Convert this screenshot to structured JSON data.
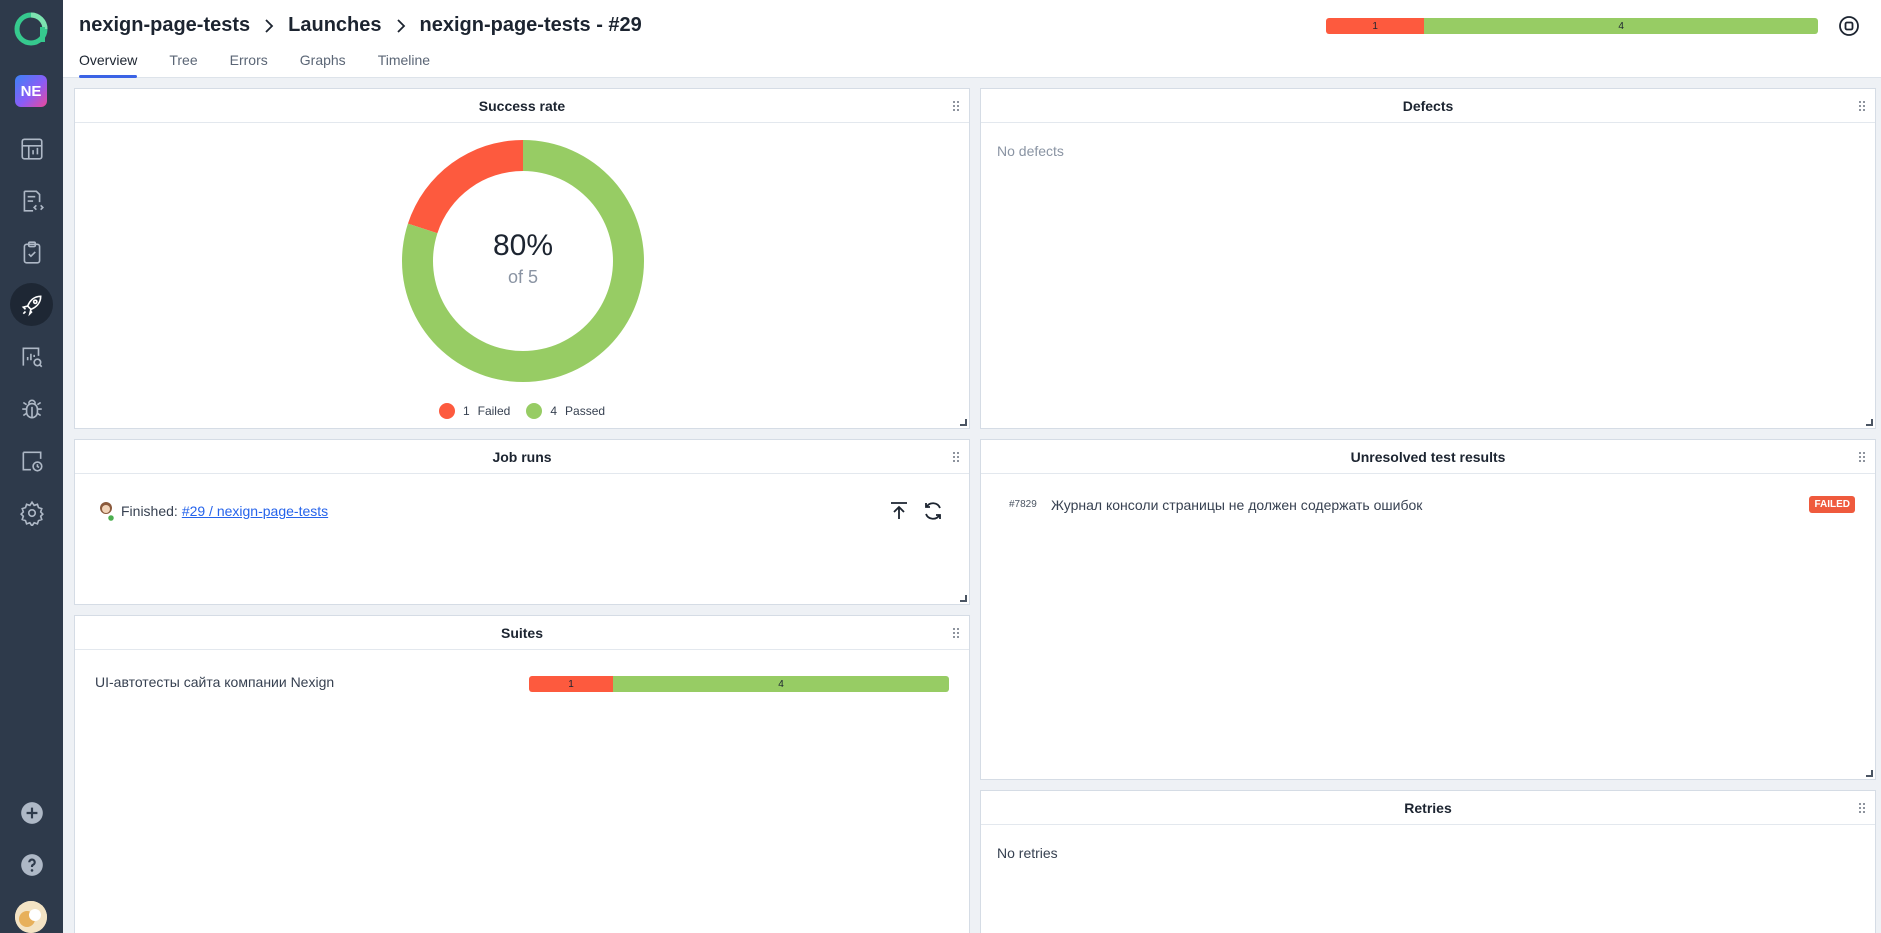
{
  "colors": {
    "failed": "#fd5a3e",
    "passed": "#97cc64",
    "sidebar": "#2e3a4b",
    "accent": "#3b63e5"
  },
  "sidebar": {
    "workspace_initials": "NE",
    "items": [
      {
        "icon": "dashboard-icon"
      },
      {
        "icon": "test-cases-icon"
      },
      {
        "icon": "test-plans-icon"
      },
      {
        "icon": "launches-icon",
        "active": true
      },
      {
        "icon": "analytics-icon"
      },
      {
        "icon": "defects-icon"
      },
      {
        "icon": "jobs-icon"
      },
      {
        "icon": "settings-icon"
      }
    ],
    "bottom": [
      {
        "icon": "plus-icon"
      },
      {
        "icon": "help-icon"
      }
    ]
  },
  "header": {
    "breadcrumb": [
      "nexign-page-tests",
      "Launches",
      "nexign-page-tests - #29"
    ],
    "tabs": [
      "Overview",
      "Tree",
      "Errors",
      "Graphs",
      "Timeline"
    ],
    "active_tab": "Overview",
    "status_bar": {
      "failed": 1,
      "passed": 4,
      "failed_label": "1",
      "passed_label": "4"
    }
  },
  "widgets": {
    "success_rate": {
      "title": "Success rate",
      "percent": "80%",
      "of_label": "of 5",
      "legend": [
        {
          "count": "1",
          "label": "Failed"
        },
        {
          "count": "4",
          "label": "Passed"
        }
      ]
    },
    "defects": {
      "title": "Defects",
      "empty": "No defects"
    },
    "job_runs": {
      "title": "Job runs",
      "status": "Finished:",
      "link": "#29 / nexign-page-tests"
    },
    "unresolved": {
      "title": "Unresolved test results",
      "rows": [
        {
          "id": "#7829",
          "name": "Журнал консоли страницы не должен содержать ошибок",
          "status": "FAILED"
        }
      ]
    },
    "suites": {
      "title": "Suites",
      "rows": [
        {
          "name": "UI-автотесты сайта компании Nexign",
          "failed": 1,
          "passed": 4,
          "failed_label": "1",
          "passed_label": "4"
        }
      ]
    },
    "retries": {
      "title": "Retries",
      "empty": "No retries"
    }
  },
  "chart_data": {
    "type": "pie",
    "categories": [
      "Failed",
      "Passed"
    ],
    "values": [
      1,
      4
    ],
    "title": "Success rate"
  }
}
